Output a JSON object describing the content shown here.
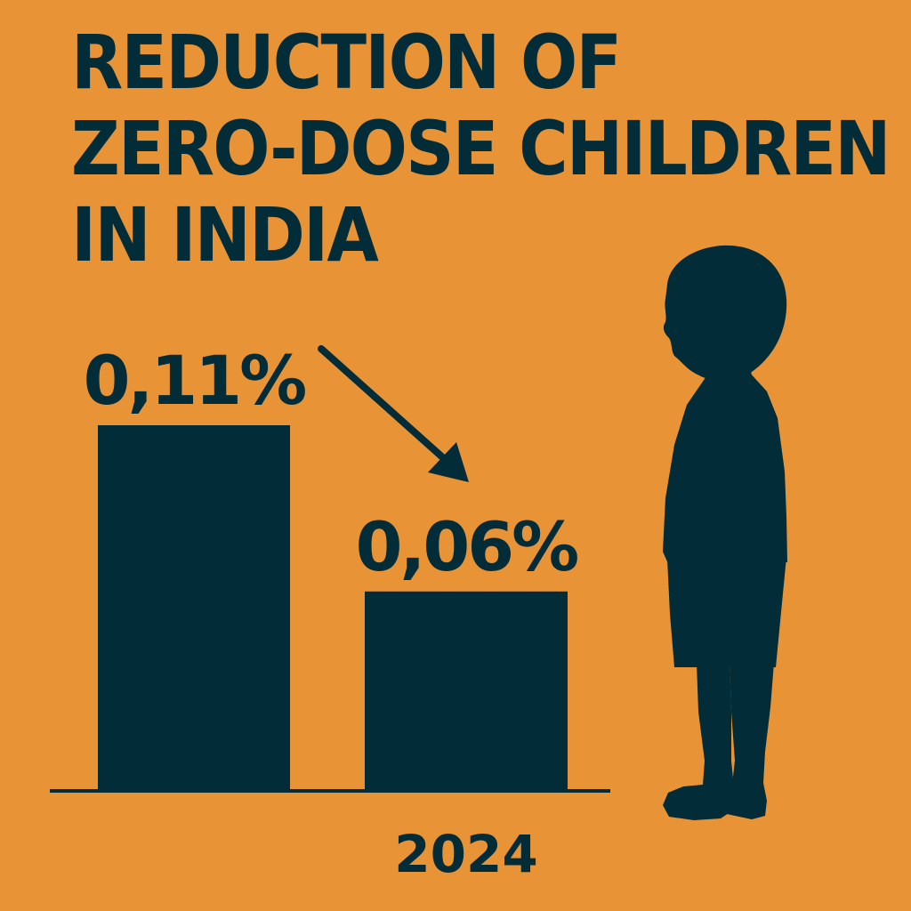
{
  "title_lines": [
    "REDUCTION OF",
    "ZERO-DOSE CHILDREN",
    "IN INDIA"
  ],
  "colors": {
    "background": "#E89436",
    "ink": "#022C38"
  },
  "icons": [
    "down-right-arrow-icon",
    "child-silhouette-icon"
  ],
  "chart_data": {
    "type": "bar",
    "title": "REDUCTION OF ZERO-DOSE CHILDREN IN INDIA",
    "categories": [
      "",
      "2024"
    ],
    "values": [
      0.11,
      0.06
    ],
    "value_labels": [
      "0,11%",
      "0,06%"
    ],
    "xlabel": "",
    "ylabel": "",
    "ylim": [
      0,
      0.11
    ],
    "grid": false,
    "legend": "none"
  }
}
